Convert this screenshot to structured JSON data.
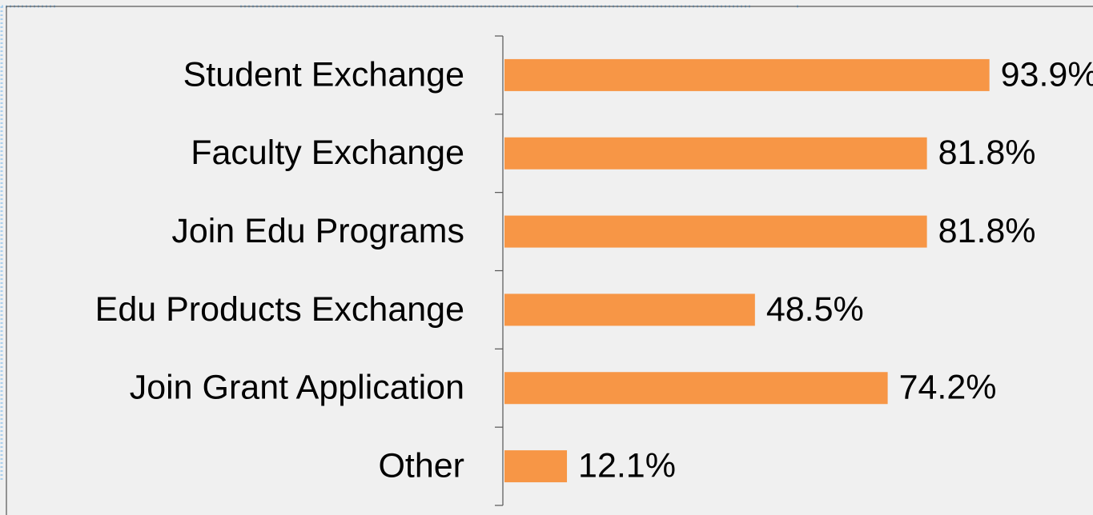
{
  "chart_data": {
    "type": "bar",
    "orientation": "horizontal",
    "categories": [
      "Student Exchange",
      "Faculty Exchange",
      "Join Edu Programs",
      "Edu Products Exchange",
      "Join Grant Application",
      "Other"
    ],
    "values": [
      93.9,
      81.8,
      81.8,
      48.5,
      74.2,
      12.1
    ],
    "value_labels": [
      "93.9%",
      "81.8%",
      "81.8%",
      "48.5%",
      "74.2%",
      "12.1%"
    ],
    "color": "#f79646"
  }
}
